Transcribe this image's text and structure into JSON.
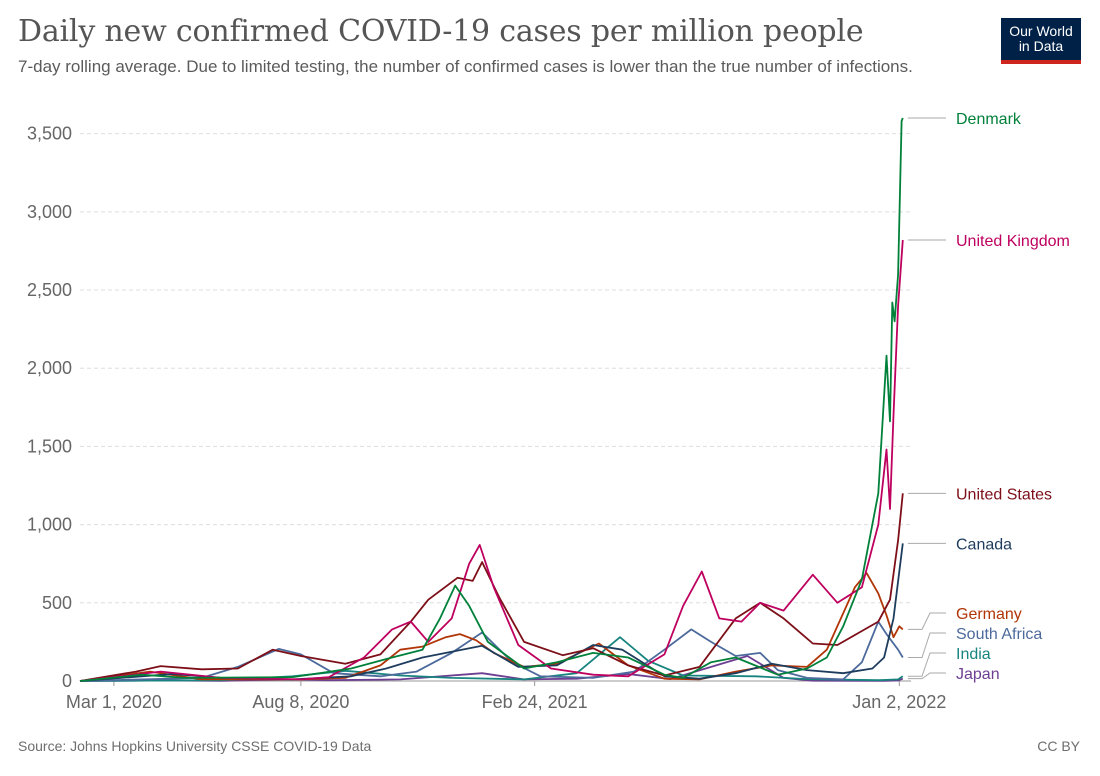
{
  "header": {
    "title": "Daily new confirmed COVID-19 cases per million people",
    "subtitle": "7-day rolling average. Due to limited testing, the number of confirmed cases is lower than the true number of infections.",
    "logo_line1": "Our World",
    "logo_line2": "in Data"
  },
  "footer": {
    "source": "Source: Johns Hopkins University CSSE COVID-19 Data",
    "license": "CC BY"
  },
  "chart_data": {
    "type": "line",
    "title": "Daily new confirmed COVID-19 cases per million people",
    "subtitle": "7-day rolling average. Due to limited testing, the number of confirmed cases is lower than the true number of infections.",
    "xlabel": "",
    "ylabel": "",
    "x_axis": {
      "type": "date",
      "range": [
        "2020-02-01",
        "2022-01-12"
      ],
      "ticks": [
        {
          "date": "2020-03-01",
          "label": "Mar 1, 2020"
        },
        {
          "date": "2020-08-08",
          "label": "Aug 8, 2020"
        },
        {
          "date": "2021-02-24",
          "label": "Feb 24, 2021"
        },
        {
          "date": "2022-01-02",
          "label": "Jan 2, 2022"
        }
      ]
    },
    "y_axis": {
      "range": [
        0,
        3600
      ],
      "ticks": [
        {
          "value": 0,
          "label": "0"
        },
        {
          "value": 500,
          "label": "500"
        },
        {
          "value": 1000,
          "label": "1,000"
        },
        {
          "value": 1500,
          "label": "1,500"
        },
        {
          "value": 2000,
          "label": "2,000"
        },
        {
          "value": 2500,
          "label": "2,500"
        },
        {
          "value": 3000,
          "label": "3,000"
        },
        {
          "value": 3500,
          "label": "3,500"
        }
      ]
    },
    "grid": "horizontal dashed",
    "legend": "line labels at right end",
    "series": [
      {
        "name": "Denmark",
        "color": "#00813a",
        "points": [
          [
            "2020-02-01",
            0
          ],
          [
            "2020-03-25",
            40
          ],
          [
            "2020-05-01",
            20
          ],
          [
            "2020-08-01",
            25
          ],
          [
            "2020-09-20",
            80
          ],
          [
            "2020-10-25",
            150
          ],
          [
            "2020-11-20",
            200
          ],
          [
            "2020-12-05",
            400
          ],
          [
            "2020-12-18",
            610
          ],
          [
            "2020-12-30",
            480
          ],
          [
            "2021-01-15",
            250
          ],
          [
            "2021-02-15",
            80
          ],
          [
            "2021-03-15",
            120
          ],
          [
            "2021-04-15",
            180
          ],
          [
            "2021-05-15",
            150
          ],
          [
            "2021-06-15",
            40
          ],
          [
            "2021-07-01",
            20
          ],
          [
            "2021-07-25",
            120
          ],
          [
            "2021-08-15",
            150
          ],
          [
            "2021-09-20",
            40
          ],
          [
            "2021-10-15",
            80
          ],
          [
            "2021-11-01",
            150
          ],
          [
            "2021-11-15",
            350
          ],
          [
            "2021-12-01",
            650
          ],
          [
            "2021-12-15",
            1200
          ],
          [
            "2021-12-22",
            2080
          ],
          [
            "2021-12-25",
            1660
          ],
          [
            "2021-12-27",
            2420
          ],
          [
            "2021-12-29",
            2300
          ],
          [
            "2022-01-01",
            2600
          ],
          [
            "2022-01-04",
            3580
          ],
          [
            "2022-01-05",
            3600
          ]
        ]
      },
      {
        "name": "United Kingdom",
        "color": "#be005f",
        "points": [
          [
            "2020-02-01",
            0
          ],
          [
            "2020-04-10",
            60
          ],
          [
            "2020-06-01",
            20
          ],
          [
            "2020-08-08",
            10
          ],
          [
            "2020-09-01",
            25
          ],
          [
            "2020-10-01",
            150
          ],
          [
            "2020-10-25",
            330
          ],
          [
            "2020-11-10",
            380
          ],
          [
            "2020-11-25",
            250
          ],
          [
            "2020-12-15",
            400
          ],
          [
            "2020-12-30",
            750
          ],
          [
            "2021-01-08",
            870
          ],
          [
            "2021-01-20",
            600
          ],
          [
            "2021-02-10",
            230
          ],
          [
            "2021-03-10",
            80
          ],
          [
            "2021-04-15",
            40
          ],
          [
            "2021-05-15",
            30
          ],
          [
            "2021-06-15",
            170
          ],
          [
            "2021-07-01",
            480
          ],
          [
            "2021-07-17",
            700
          ],
          [
            "2021-08-01",
            400
          ],
          [
            "2021-08-20",
            380
          ],
          [
            "2021-09-05",
            500
          ],
          [
            "2021-09-25",
            450
          ],
          [
            "2021-10-20",
            680
          ],
          [
            "2021-11-10",
            500
          ],
          [
            "2021-12-01",
            600
          ],
          [
            "2021-12-15",
            1000
          ],
          [
            "2021-12-22",
            1480
          ],
          [
            "2021-12-25",
            1100
          ],
          [
            "2021-12-28",
            1700
          ],
          [
            "2022-01-01",
            2400
          ],
          [
            "2022-01-05",
            2820
          ]
        ]
      },
      {
        "name": "United States",
        "color": "#7d0f18",
        "points": [
          [
            "2020-02-01",
            0
          ],
          [
            "2020-03-20",
            60
          ],
          [
            "2020-04-10",
            95
          ],
          [
            "2020-05-15",
            75
          ],
          [
            "2020-06-15",
            80
          ],
          [
            "2020-07-15",
            200
          ],
          [
            "2020-08-08",
            160
          ],
          [
            "2020-09-15",
            110
          ],
          [
            "2020-10-15",
            170
          ],
          [
            "2020-11-10",
            380
          ],
          [
            "2020-11-25",
            520
          ],
          [
            "2020-12-20",
            660
          ],
          [
            "2021-01-02",
            640
          ],
          [
            "2021-01-10",
            760
          ],
          [
            "2021-01-25",
            530
          ],
          [
            "2021-02-15",
            250
          ],
          [
            "2021-03-20",
            165
          ],
          [
            "2021-04-15",
            210
          ],
          [
            "2021-05-15",
            100
          ],
          [
            "2021-06-15",
            35
          ],
          [
            "2021-07-15",
            90
          ],
          [
            "2021-08-15",
            400
          ],
          [
            "2021-09-05",
            500
          ],
          [
            "2021-09-25",
            400
          ],
          [
            "2021-10-20",
            240
          ],
          [
            "2021-11-10",
            230
          ],
          [
            "2021-12-01",
            320
          ],
          [
            "2021-12-15",
            380
          ],
          [
            "2021-12-25",
            520
          ],
          [
            "2022-01-01",
            900
          ],
          [
            "2022-01-05",
            1200
          ]
        ]
      },
      {
        "name": "Canada",
        "color": "#1e3d5e",
        "points": [
          [
            "2020-02-01",
            0
          ],
          [
            "2020-04-20",
            45
          ],
          [
            "2020-06-01",
            20
          ],
          [
            "2020-08-01",
            10
          ],
          [
            "2020-09-20",
            30
          ],
          [
            "2020-10-20",
            80
          ],
          [
            "2020-11-20",
            150
          ],
          [
            "2021-01-10",
            225
          ],
          [
            "2021-02-10",
            90
          ],
          [
            "2021-03-15",
            100
          ],
          [
            "2021-04-15",
            230
          ],
          [
            "2021-05-10",
            200
          ],
          [
            "2021-06-15",
            30
          ],
          [
            "2021-07-15",
            15
          ],
          [
            "2021-08-15",
            50
          ],
          [
            "2021-09-15",
            110
          ],
          [
            "2021-10-15",
            70
          ],
          [
            "2021-11-15",
            50
          ],
          [
            "2021-12-10",
            80
          ],
          [
            "2021-12-20",
            150
          ],
          [
            "2021-12-28",
            400
          ],
          [
            "2022-01-02",
            700
          ],
          [
            "2022-01-05",
            880
          ]
        ]
      },
      {
        "name": "Germany",
        "color": "#b13507",
        "points": [
          [
            "2020-02-01",
            0
          ],
          [
            "2020-04-01",
            60
          ],
          [
            "2020-05-15",
            10
          ],
          [
            "2020-08-08",
            10
          ],
          [
            "2020-09-15",
            20
          ],
          [
            "2020-10-15",
            100
          ],
          [
            "2020-11-01",
            200
          ],
          [
            "2020-11-20",
            220
          ],
          [
            "2020-12-10",
            280
          ],
          [
            "2020-12-22",
            300
          ],
          [
            "2021-01-05",
            260
          ],
          [
            "2021-01-20",
            180
          ],
          [
            "2021-02-15",
            90
          ],
          [
            "2021-03-15",
            110
          ],
          [
            "2021-04-20",
            240
          ],
          [
            "2021-05-15",
            100
          ],
          [
            "2021-06-15",
            15
          ],
          [
            "2021-07-15",
            10
          ],
          [
            "2021-08-15",
            60
          ],
          [
            "2021-09-15",
            100
          ],
          [
            "2021-10-15",
            90
          ],
          [
            "2021-11-01",
            200
          ],
          [
            "2021-11-25",
            600
          ],
          [
            "2021-12-05",
            690
          ],
          [
            "2021-12-15",
            560
          ],
          [
            "2021-12-22",
            420
          ],
          [
            "2021-12-28",
            280
          ],
          [
            "2022-01-02",
            350
          ],
          [
            "2022-01-05",
            330
          ]
        ]
      },
      {
        "name": "South Africa",
        "color": "#4c6a9c",
        "points": [
          [
            "2020-02-01",
            0
          ],
          [
            "2020-05-15",
            20
          ],
          [
            "2020-06-15",
            90
          ],
          [
            "2020-07-20",
            205
          ],
          [
            "2020-08-08",
            170
          ],
          [
            "2020-09-05",
            50
          ],
          [
            "2020-10-15",
            30
          ],
          [
            "2020-11-15",
            60
          ],
          [
            "2020-12-15",
            180
          ],
          [
            "2021-01-10",
            310
          ],
          [
            "2021-02-05",
            120
          ],
          [
            "2021-03-01",
            30
          ],
          [
            "2021-04-15",
            20
          ],
          [
            "2021-05-20",
            60
          ],
          [
            "2021-06-15",
            200
          ],
          [
            "2021-07-08",
            330
          ],
          [
            "2021-07-25",
            250
          ],
          [
            "2021-08-15",
            160
          ],
          [
            "2021-09-05",
            180
          ],
          [
            "2021-09-20",
            70
          ],
          [
            "2021-10-15",
            20
          ],
          [
            "2021-11-15",
            10
          ],
          [
            "2021-12-01",
            120
          ],
          [
            "2021-12-15",
            380
          ],
          [
            "2021-12-22",
            300
          ],
          [
            "2022-01-01",
            200
          ],
          [
            "2022-01-05",
            150
          ]
        ]
      },
      {
        "name": "India",
        "color": "#18847f",
        "points": [
          [
            "2020-02-01",
            0
          ],
          [
            "2020-06-01",
            5
          ],
          [
            "2020-08-01",
            30
          ],
          [
            "2020-09-15",
            65
          ],
          [
            "2020-11-01",
            35
          ],
          [
            "2020-12-15",
            20
          ],
          [
            "2021-02-15",
            10
          ],
          [
            "2021-04-01",
            50
          ],
          [
            "2021-05-08",
            280
          ],
          [
            "2021-06-01",
            130
          ],
          [
            "2021-07-01",
            35
          ],
          [
            "2021-09-01",
            30
          ],
          [
            "2021-10-15",
            12
          ],
          [
            "2021-12-15",
            5
          ],
          [
            "2022-01-01",
            10
          ],
          [
            "2022-01-05",
            30
          ]
        ]
      },
      {
        "name": "Japan",
        "color": "#6d3e91",
        "points": [
          [
            "2020-02-01",
            0
          ],
          [
            "2020-04-15",
            3
          ],
          [
            "2020-06-01",
            1
          ],
          [
            "2020-08-01",
            10
          ],
          [
            "2020-09-01",
            5
          ],
          [
            "2020-11-01",
            10
          ],
          [
            "2021-01-10",
            50
          ],
          [
            "2021-02-15",
            10
          ],
          [
            "2021-04-01",
            15
          ],
          [
            "2021-05-15",
            45
          ],
          [
            "2021-06-20",
            12
          ],
          [
            "2021-08-25",
            160
          ],
          [
            "2021-09-25",
            20
          ],
          [
            "2021-10-20",
            2
          ],
          [
            "2021-12-20",
            1
          ],
          [
            "2022-01-01",
            3
          ],
          [
            "2022-01-05",
            15
          ]
        ]
      }
    ]
  }
}
